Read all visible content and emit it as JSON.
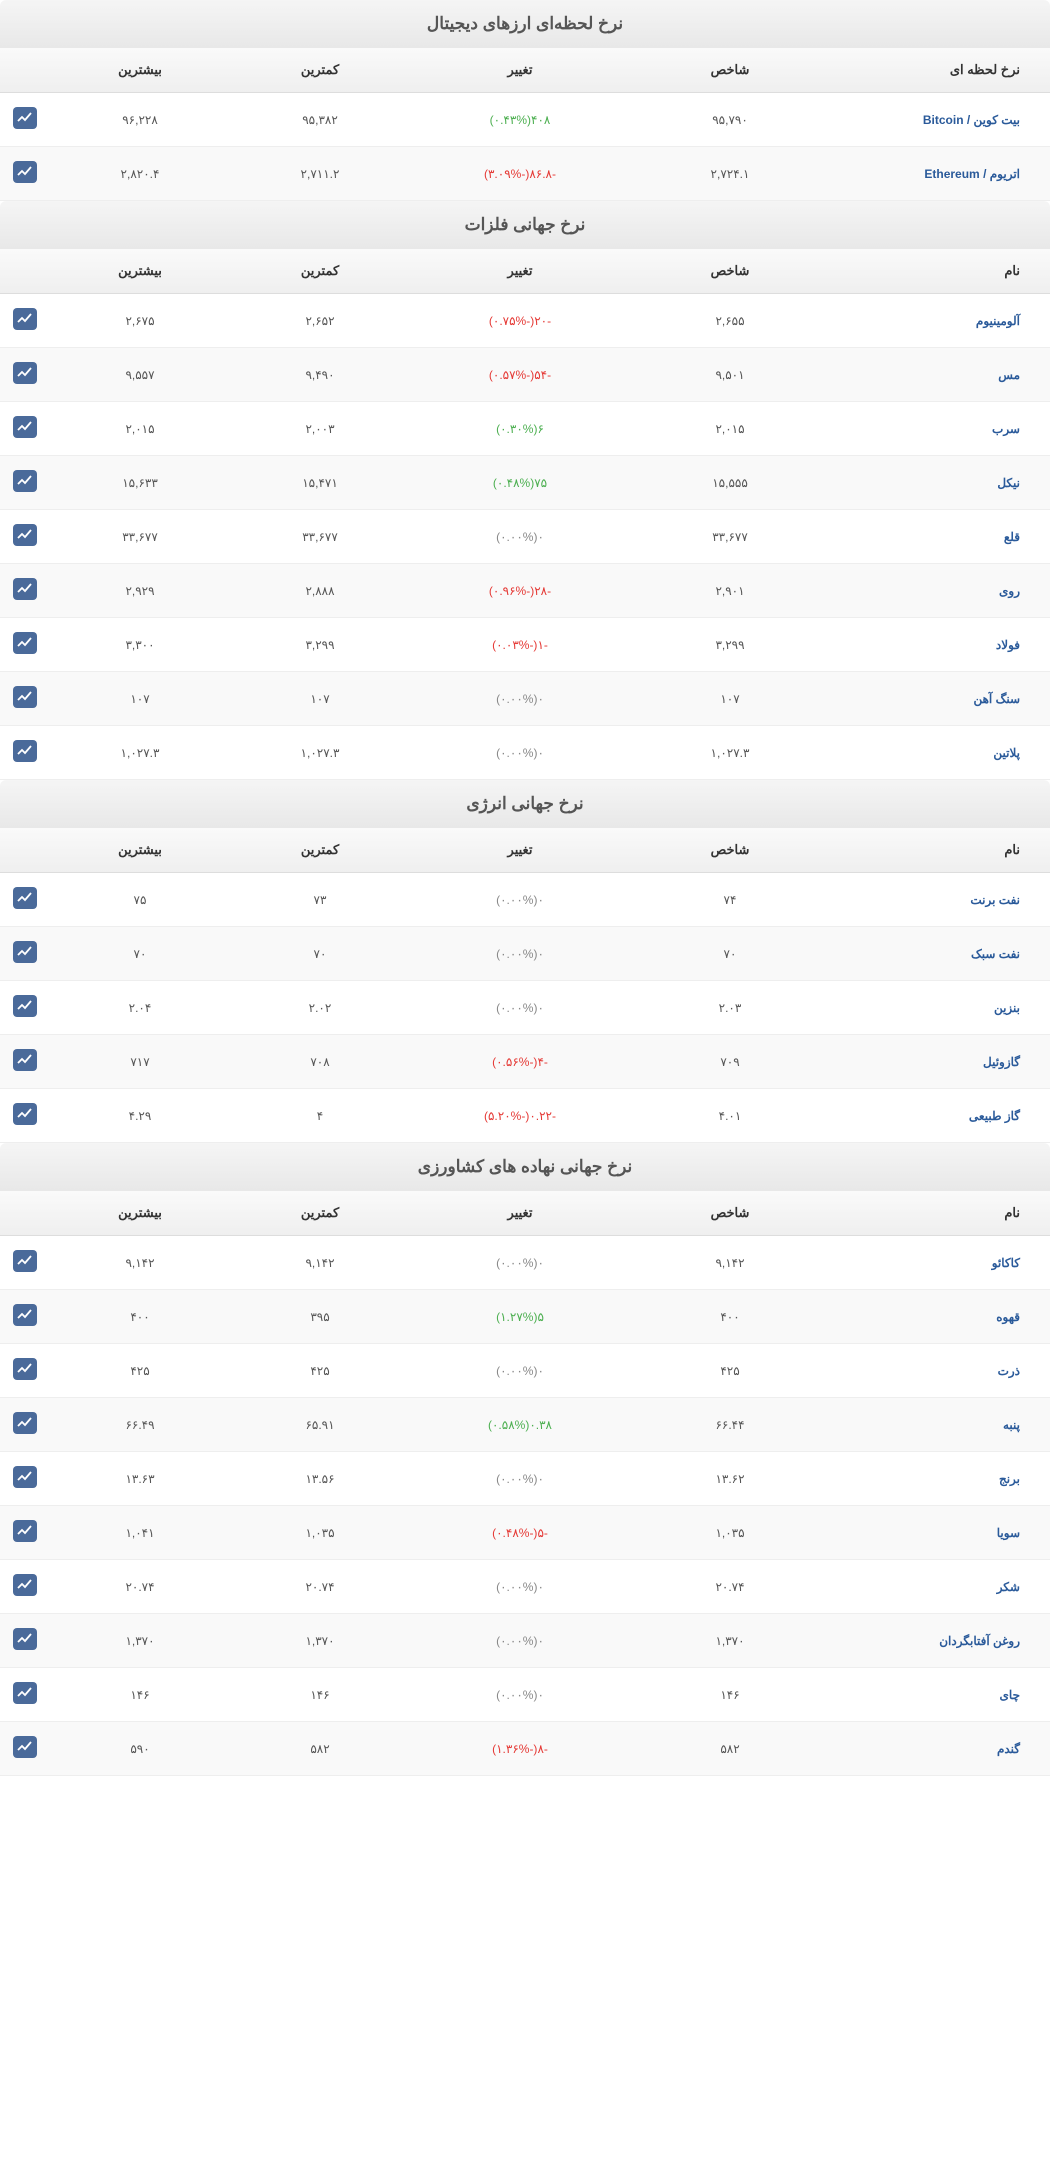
{
  "columns_live": [
    "نرخ لحظه ای",
    "شاخص",
    "تغییر",
    "کمترین",
    "بیشترین",
    ""
  ],
  "columns_name": [
    "نام",
    "شاخص",
    "تغییر",
    "کمترین",
    "بیشترین",
    ""
  ],
  "sections": [
    {
      "title": "نرخ لحظه‌ای ارزهای دیجیتال",
      "header_key": "columns_live",
      "rows": [
        {
          "name": "بیت کوین / Bitcoin",
          "index": "۹۵,۷۹۰",
          "change_val": "۴۰۸",
          "change_pct": "(۰.۴۳%)",
          "dir": "up",
          "low": "۹۵,۳۸۲",
          "high": "۹۶,۲۲۸"
        },
        {
          "name": "اتریوم / Ethereum",
          "index": "۲,۷۲۴.۱",
          "change_val": "-۸۶.۸",
          "change_pct": "(-۳.۰۹%)",
          "dir": "down",
          "low": "۲,۷۱۱.۲",
          "high": "۲,۸۲۰.۴"
        }
      ]
    },
    {
      "title": "نرخ جهانی فلزات",
      "header_key": "columns_name",
      "rows": [
        {
          "name": "آلومینیوم",
          "index": "۲,۶۵۵",
          "change_val": "-۲۰",
          "change_pct": "(-۰.۷۵%)",
          "dir": "down",
          "low": "۲,۶۵۲",
          "high": "۲,۶۷۵"
        },
        {
          "name": "مس",
          "index": "۹,۵۰۱",
          "change_val": "-۵۴",
          "change_pct": "(-۰.۵۷%)",
          "dir": "down",
          "low": "۹,۴۹۰",
          "high": "۹,۵۵۷"
        },
        {
          "name": "سرب",
          "index": "۲,۰۱۵",
          "change_val": "۶",
          "change_pct": "(۰.۳۰%)",
          "dir": "up",
          "low": "۲,۰۰۳",
          "high": "۲,۰۱۵"
        },
        {
          "name": "نیکل",
          "index": "۱۵,۵۵۵",
          "change_val": "۷۵",
          "change_pct": "(۰.۴۸%)",
          "dir": "up",
          "low": "۱۵,۴۷۱",
          "high": "۱۵,۶۳۳"
        },
        {
          "name": "قلع",
          "index": "۳۳,۶۷۷",
          "change_val": "۰",
          "change_pct": "(۰.۰۰%)",
          "dir": "neutral",
          "low": "۳۳,۶۷۷",
          "high": "۳۳,۶۷۷"
        },
        {
          "name": "روی",
          "index": "۲,۹۰۱",
          "change_val": "-۲۸",
          "change_pct": "(-۰.۹۶%)",
          "dir": "down",
          "low": "۲,۸۸۸",
          "high": "۲,۹۲۹"
        },
        {
          "name": "فولاد",
          "index": "۳,۲۹۹",
          "change_val": "-۱",
          "change_pct": "(-۰.۰۳%)",
          "dir": "down",
          "low": "۳,۲۹۹",
          "high": "۳,۳۰۰"
        },
        {
          "name": "سنگ آهن",
          "index": "۱۰۷",
          "change_val": "۰",
          "change_pct": "(۰.۰۰%)",
          "dir": "neutral",
          "low": "۱۰۷",
          "high": "۱۰۷"
        },
        {
          "name": "پلاتین",
          "index": "۱,۰۲۷.۳",
          "change_val": "۰",
          "change_pct": "(۰.۰۰%)",
          "dir": "neutral",
          "low": "۱,۰۲۷.۳",
          "high": "۱,۰۲۷.۳"
        }
      ]
    },
    {
      "title": "نرخ جهانی انرژی",
      "header_key": "columns_name",
      "rows": [
        {
          "name": "نفت برنت",
          "index": "۷۴",
          "change_val": "۰",
          "change_pct": "(۰.۰۰%)",
          "dir": "neutral",
          "low": "۷۳",
          "high": "۷۵"
        },
        {
          "name": "نفت سبک",
          "index": "۷۰",
          "change_val": "۰",
          "change_pct": "(۰.۰۰%)",
          "dir": "neutral",
          "low": "۷۰",
          "high": "۷۰"
        },
        {
          "name": "بنزین",
          "index": "۲.۰۳",
          "change_val": "۰",
          "change_pct": "(۰.۰۰%)",
          "dir": "neutral",
          "low": "۲.۰۲",
          "high": "۲.۰۴"
        },
        {
          "name": "گازوئیل",
          "index": "۷۰۹",
          "change_val": "-۴",
          "change_pct": "(-۰.۵۶%)",
          "dir": "down",
          "low": "۷۰۸",
          "high": "۷۱۷"
        },
        {
          "name": "گاز طبیعی",
          "index": "۴.۰۱",
          "change_val": "-۰.۲۲",
          "change_pct": "(-۵.۲۰%)",
          "dir": "down",
          "low": "۴",
          "high": "۴.۲۹"
        }
      ]
    },
    {
      "title": "نرخ جهانی نهاده های کشاورزی",
      "header_key": "columns_name",
      "rows": [
        {
          "name": "کاکائو",
          "index": "۹,۱۴۲",
          "change_val": "۰",
          "change_pct": "(۰.۰۰%)",
          "dir": "neutral",
          "low": "۹,۱۴۲",
          "high": "۹,۱۴۲"
        },
        {
          "name": "قهوه",
          "index": "۴۰۰",
          "change_val": "۵",
          "change_pct": "(۱.۲۷%)",
          "dir": "up",
          "low": "۳۹۵",
          "high": "۴۰۰"
        },
        {
          "name": "ذرت",
          "index": "۴۲۵",
          "change_val": "۰",
          "change_pct": "(۰.۰۰%)",
          "dir": "neutral",
          "low": "۴۲۵",
          "high": "۴۲۵"
        },
        {
          "name": "پنبه",
          "index": "۶۶.۴۴",
          "change_val": "۰.۳۸",
          "change_pct": "(۰.۵۸%)",
          "dir": "up",
          "low": "۶۵.۹۱",
          "high": "۶۶.۴۹"
        },
        {
          "name": "برنج",
          "index": "۱۳.۶۲",
          "change_val": "۰",
          "change_pct": "(۰.۰۰%)",
          "dir": "neutral",
          "low": "۱۳.۵۶",
          "high": "۱۳.۶۳"
        },
        {
          "name": "سویا",
          "index": "۱,۰۳۵",
          "change_val": "-۵",
          "change_pct": "(-۰.۴۸%)",
          "dir": "down",
          "low": "۱,۰۳۵",
          "high": "۱,۰۴۱"
        },
        {
          "name": "شکر",
          "index": "۲۰.۷۴",
          "change_val": "۰",
          "change_pct": "(۰.۰۰%)",
          "dir": "neutral",
          "low": "۲۰.۷۴",
          "high": "۲۰.۷۴"
        },
        {
          "name": "روغن آفتابگردان",
          "index": "۱,۳۷۰",
          "change_val": "۰",
          "change_pct": "(۰.۰۰%)",
          "dir": "neutral",
          "low": "۱,۳۷۰",
          "high": "۱,۳۷۰"
        },
        {
          "name": "چای",
          "index": "۱۴۶",
          "change_val": "۰",
          "change_pct": "(۰.۰۰%)",
          "dir": "neutral",
          "low": "۱۴۶",
          "high": "۱۴۶"
        },
        {
          "name": "گندم",
          "index": "۵۸۲",
          "change_val": "-۸",
          "change_pct": "(-۱.۳۶%)",
          "dir": "down",
          "low": "۵۸۲",
          "high": "۵۹۰"
        }
      ]
    }
  ]
}
